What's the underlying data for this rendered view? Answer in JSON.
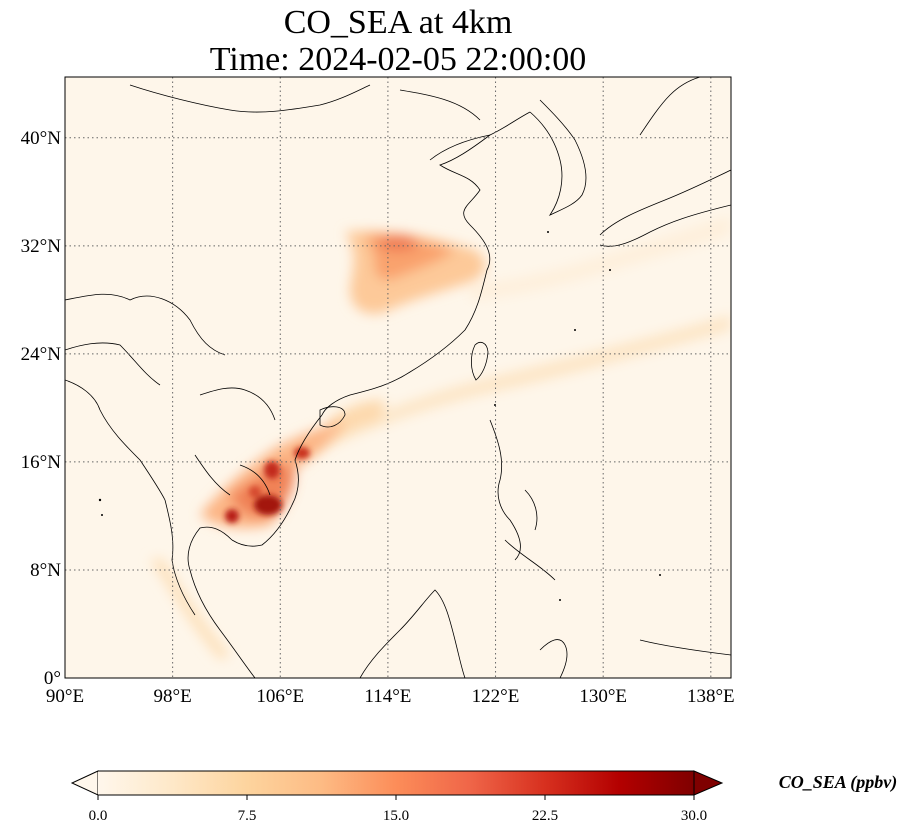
{
  "title": {
    "line1": "CO_SEA at 4km",
    "line2": "Time: 2024-02-05 22:00:00"
  },
  "map": {
    "lon_range": [
      90,
      139.5
    ],
    "lat_range": [
      0,
      44.5
    ],
    "lon_ticks": [
      {
        "value": 90,
        "label": "90°E"
      },
      {
        "value": 98,
        "label": "98°E"
      },
      {
        "value": 106,
        "label": "106°E"
      },
      {
        "value": 114,
        "label": "114°E"
      },
      {
        "value": 122,
        "label": "122°E"
      },
      {
        "value": 130,
        "label": "130°E"
      },
      {
        "value": 138,
        "label": "138°E"
      }
    ],
    "lat_ticks": [
      {
        "value": 0,
        "label": "0°"
      },
      {
        "value": 8,
        "label": "8°N"
      },
      {
        "value": 16,
        "label": "16°N"
      },
      {
        "value": 24,
        "label": "24°N"
      },
      {
        "value": 32,
        "label": "32°N"
      },
      {
        "value": 40,
        "label": "40°N"
      }
    ],
    "gridlines": "dotted",
    "background_color": "#fef6ea",
    "coastline_color": "#000000",
    "plumes": [
      {
        "name": "Yangtze plume",
        "lon": [
          111,
          121
        ],
        "lat": [
          28,
          33.5
        ],
        "peak_ppbv": 14
      },
      {
        "name": "Indochina burning",
        "lon": [
          100,
          109
        ],
        "lat": [
          10,
          18
        ],
        "peak_ppbv": 28
      },
      {
        "name": "outflow band",
        "lon": [
          108,
          139.5
        ],
        "lat": [
          16,
          27.5
        ],
        "peak_ppbv": 8
      }
    ]
  },
  "colorbar": {
    "label": "CO_SEA (ppbv)",
    "colormap": "OrRd",
    "range": [
      0,
      30
    ],
    "extend": "both",
    "ticks": [
      {
        "value": 0,
        "label": "0.0"
      },
      {
        "value": 7.5,
        "label": "7.5"
      },
      {
        "value": 15,
        "label": "15.0"
      },
      {
        "value": 22.5,
        "label": "22.5"
      },
      {
        "value": 30,
        "label": "30.0"
      }
    ],
    "stops": [
      "#fff7ec",
      "#fee8c8",
      "#fdd49e",
      "#fdbb84",
      "#fc8d59",
      "#ef6548",
      "#d7301f",
      "#b30000",
      "#7f0000"
    ]
  }
}
